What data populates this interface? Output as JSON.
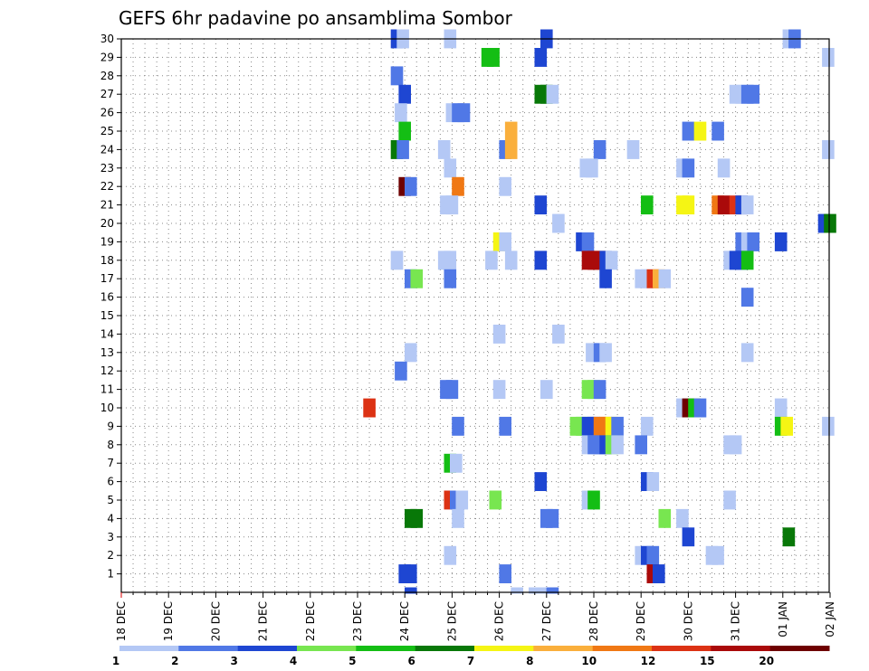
{
  "chart_data": {
    "type": "heatmap",
    "title": "GEFS 6hr padavine po ansamblima Sombor",
    "xlabel": "",
    "ylabel": "",
    "x_ticks": [
      "18 DEC",
      "19 DEC",
      "20 DEC",
      "21 DEC",
      "22 DEC",
      "23 DEC",
      "24 DEC",
      "25 DEC",
      "26 DEC",
      "27 DEC",
      "28 DEC",
      "29 DEC",
      "30 DEC",
      "31 DEC",
      "01 JAN",
      "02 JAN"
    ],
    "y_ticks": [
      "1",
      "2",
      "3",
      "4",
      "5",
      "6",
      "7",
      "8",
      "9",
      "10",
      "11",
      "12",
      "13",
      "14",
      "15",
      "16",
      "17",
      "18",
      "19",
      "20",
      "21",
      "22",
      "23",
      "24",
      "25",
      "26",
      "27",
      "28",
      "29",
      "30"
    ],
    "grid": true,
    "legend_position": "bottom",
    "legend_levels": [
      "1",
      "2",
      "3",
      "4",
      "5",
      "6",
      "7",
      "8",
      "10",
      "12",
      "15",
      "20"
    ],
    "legend_colors": [
      "#b4c8f5",
      "#5078e6",
      "#1e46d2",
      "#78e650",
      "#14be14",
      "#087808",
      "#f5f514",
      "#faaf3c",
      "#f07814",
      "#dc3214",
      "#aa0a0a",
      "#6e0000"
    ],
    "ensemble_range": [
      1,
      30
    ],
    "time_step_hours": 6,
    "cells": [
      {
        "m": 30,
        "d": "24 DEC",
        "h": -4,
        "v": 3
      },
      {
        "m": 30,
        "d": "24 DEC",
        "h": -1,
        "v": 1
      },
      {
        "m": 30,
        "d": "25 DEC",
        "h": -1,
        "v": 1
      },
      {
        "m": 30,
        "d": "27 DEC",
        "h": 0,
        "v": 3
      },
      {
        "m": 30,
        "d": "01 JAN",
        "h": 3,
        "v": 1
      },
      {
        "m": 30,
        "d": "01 JAN",
        "h": 6,
        "v": 2
      },
      {
        "m": 29,
        "d": "26 DEC",
        "h": -6,
        "v": 5
      },
      {
        "m": 29,
        "d": "26 DEC",
        "h": -3,
        "v": 5
      },
      {
        "m": 29,
        "d": "27 DEC",
        "h": -3,
        "v": 3
      },
      {
        "m": 29,
        "d": "02 JAN",
        "h": -1,
        "v": 1
      },
      {
        "m": 28,
        "d": "24 DEC",
        "h": -4,
        "v": 2
      },
      {
        "m": 27,
        "d": "24 DEC",
        "h": 0,
        "v": 3
      },
      {
        "m": 27,
        "d": "27 DEC",
        "h": -3,
        "v": 6
      },
      {
        "m": 27,
        "d": "27 DEC",
        "h": 0,
        "v": 6
      },
      {
        "m": 27,
        "d": "27 DEC",
        "h": 3,
        "v": 1
      },
      {
        "m": 27,
        "d": "31 DEC",
        "h": 0,
        "v": 1
      },
      {
        "m": 27,
        "d": "31 DEC",
        "h": 3,
        "v": 1
      },
      {
        "m": 27,
        "d": "31 DEC",
        "h": 6,
        "v": 2
      },
      {
        "m": 27,
        "d": "31 DEC",
        "h": 9,
        "v": 2
      },
      {
        "m": 26,
        "d": "24 DEC",
        "h": -2,
        "v": 1
      },
      {
        "m": 26,
        "d": "25 DEC",
        "h": 0,
        "v": 1
      },
      {
        "m": 26,
        "d": "25 DEC",
        "h": 3,
        "v": 2
      },
      {
        "m": 26,
        "d": "25 DEC",
        "h": 6,
        "v": 2
      },
      {
        "m": 25,
        "d": "24 DEC",
        "h": 0,
        "v": 5
      },
      {
        "m": 25,
        "d": "26 DEC",
        "h": 6,
        "v": 8
      },
      {
        "m": 25,
        "d": "30 DEC",
        "h": 0,
        "v": 2
      },
      {
        "m": 25,
        "d": "30 DEC",
        "h": 6,
        "v": 7
      },
      {
        "m": 25,
        "d": "31 DEC",
        "h": -9,
        "v": 2
      },
      {
        "m": 24,
        "d": "24 DEC",
        "h": -4,
        "v": 6
      },
      {
        "m": 24,
        "d": "24 DEC",
        "h": -1,
        "v": 2
      },
      {
        "m": 24,
        "d": "25 DEC",
        "h": -4,
        "v": 1
      },
      {
        "m": 24,
        "d": "26 DEC",
        "h": 3,
        "v": 2
      },
      {
        "m": 24,
        "d": "26 DEC",
        "h": 6,
        "v": 8
      },
      {
        "m": 24,
        "d": "28 DEC",
        "h": 3,
        "v": 2
      },
      {
        "m": 24,
        "d": "29 DEC",
        "h": -4,
        "v": 1
      },
      {
        "m": 24,
        "d": "02 JAN",
        "h": -1,
        "v": 1
      },
      {
        "m": 23,
        "d": "25 DEC",
        "h": -1,
        "v": 1
      },
      {
        "m": 23,
        "d": "28 DEC",
        "h": -4,
        "v": 1
      },
      {
        "m": 23,
        "d": "28 DEC",
        "h": -1,
        "v": 1
      },
      {
        "m": 23,
        "d": "30 DEC",
        "h": -3,
        "v": 1
      },
      {
        "m": 23,
        "d": "30 DEC",
        "h": 0,
        "v": 2
      },
      {
        "m": 23,
        "d": "31 DEC",
        "h": -6,
        "v": 1
      },
      {
        "m": 22,
        "d": "24 DEC",
        "h": 0,
        "v": 20
      },
      {
        "m": 22,
        "d": "24 DEC",
        "h": 3,
        "v": 2
      },
      {
        "m": 22,
        "d": "25 DEC",
        "h": 3,
        "v": 10
      },
      {
        "m": 22,
        "d": "26 DEC",
        "h": 3,
        "v": 1
      },
      {
        "m": 21,
        "d": "25 DEC",
        "h": -3,
        "v": 1
      },
      {
        "m": 21,
        "d": "25 DEC",
        "h": 0,
        "v": 1
      },
      {
        "m": 21,
        "d": "27 DEC",
        "h": -3,
        "v": 3
      },
      {
        "m": 21,
        "d": "29 DEC",
        "h": 3,
        "v": 5
      },
      {
        "m": 21,
        "d": "30 DEC",
        "h": -3,
        "v": 7
      },
      {
        "m": 21,
        "d": "30 DEC",
        "h": 0,
        "v": 7
      },
      {
        "m": 21,
        "d": "31 DEC",
        "h": -9,
        "v": 10
      },
      {
        "m": 21,
        "d": "31 DEC",
        "h": -6,
        "v": 15
      },
      {
        "m": 21,
        "d": "31 DEC",
        "h": 0,
        "v": 12
      },
      {
        "m": 21,
        "d": "31 DEC",
        "h": 3,
        "v": 3
      },
      {
        "m": 21,
        "d": "31 DEC",
        "h": 6,
        "v": 1
      },
      {
        "m": 20,
        "d": "27 DEC",
        "h": 6,
        "v": 1
      },
      {
        "m": 20,
        "d": "02 JAN",
        "h": -3,
        "v": 3
      },
      {
        "m": 20,
        "d": "02 JAN",
        "h": 0,
        "v": 6
      },
      {
        "m": 19,
        "d": "26 DEC",
        "h": 0,
        "v": 7
      },
      {
        "m": 19,
        "d": "26 DEC",
        "h": 3,
        "v": 1
      },
      {
        "m": 19,
        "d": "28 DEC",
        "h": -6,
        "v": 3
      },
      {
        "m": 19,
        "d": "28 DEC",
        "h": -3,
        "v": 2
      },
      {
        "m": 19,
        "d": "31 DEC",
        "h": 3,
        "v": 2
      },
      {
        "m": 19,
        "d": "31 DEC",
        "h": 6,
        "v": 1
      },
      {
        "m": 19,
        "d": "31 DEC",
        "h": 9,
        "v": 2
      },
      {
        "m": 19,
        "d": "01 JAN",
        "h": -1,
        "v": 3
      },
      {
        "m": 18,
        "d": "24 DEC",
        "h": -4,
        "v": 1
      },
      {
        "m": 18,
        "d": "25 DEC",
        "h": -4,
        "v": 1
      },
      {
        "m": 18,
        "d": "25 DEC",
        "h": -1,
        "v": 1
      },
      {
        "m": 18,
        "d": "26 DEC",
        "h": -4,
        "v": 1
      },
      {
        "m": 18,
        "d": "26 DEC",
        "h": 6,
        "v": 1
      },
      {
        "m": 18,
        "d": "27 DEC",
        "h": -3,
        "v": 3
      },
      {
        "m": 18,
        "d": "28 DEC",
        "h": -3,
        "v": 15
      },
      {
        "m": 18,
        "d": "28 DEC",
        "h": 0,
        "v": 15
      },
      {
        "m": 18,
        "d": "28 DEC",
        "h": 3,
        "v": 15
      },
      {
        "m": 18,
        "d": "28 DEC",
        "h": 6,
        "v": 3
      },
      {
        "m": 18,
        "d": "28 DEC",
        "h": 9,
        "v": 1
      },
      {
        "m": 18,
        "d": "31 DEC",
        "h": -3,
        "v": 1
      },
      {
        "m": 18,
        "d": "31 DEC",
        "h": 0,
        "v": 3
      },
      {
        "m": 18,
        "d": "31 DEC",
        "h": 3,
        "v": 3
      },
      {
        "m": 18,
        "d": "31 DEC",
        "h": 6,
        "v": 5
      },
      {
        "m": 17,
        "d": "24 DEC",
        "h": 3,
        "v": 2
      },
      {
        "m": 17,
        "d": "24 DEC",
        "h": 6,
        "v": 4
      },
      {
        "m": 17,
        "d": "25 DEC",
        "h": -1,
        "v": 2
      },
      {
        "m": 17,
        "d": "28 DEC",
        "h": 6,
        "v": 3
      },
      {
        "m": 17,
        "d": "29 DEC",
        "h": 0,
        "v": 1
      },
      {
        "m": 17,
        "d": "29 DEC",
        "h": 3,
        "v": 1
      },
      {
        "m": 17,
        "d": "29 DEC",
        "h": 6,
        "v": 12
      },
      {
        "m": 17,
        "d": "29 DEC",
        "h": 9,
        "v": 8
      },
      {
        "m": 17,
        "d": "29 DEC",
        "h": 12,
        "v": 1
      },
      {
        "m": 16,
        "d": "31 DEC",
        "h": 6,
        "v": 2
      },
      {
        "m": 14,
        "d": "26 DEC",
        "h": 0,
        "v": 1
      },
      {
        "m": 14,
        "d": "27 DEC",
        "h": 6,
        "v": 1
      },
      {
        "m": 13,
        "d": "24 DEC",
        "h": 3,
        "v": 1
      },
      {
        "m": 13,
        "d": "28 DEC",
        "h": -1,
        "v": 1
      },
      {
        "m": 13,
        "d": "28 DEC",
        "h": 3,
        "v": 2
      },
      {
        "m": 13,
        "d": "28 DEC",
        "h": 6,
        "v": 1
      },
      {
        "m": 13,
        "d": "31 DEC",
        "h": 6,
        "v": 1
      },
      {
        "m": 12,
        "d": "24 DEC",
        "h": -2,
        "v": 2
      },
      {
        "m": 11,
        "d": "25 DEC",
        "h": -3,
        "v": 2
      },
      {
        "m": 11,
        "d": "25 DEC",
        "h": 0,
        "v": 2
      },
      {
        "m": 11,
        "d": "26 DEC",
        "h": 0,
        "v": 1
      },
      {
        "m": 11,
        "d": "27 DEC",
        "h": 0,
        "v": 1
      },
      {
        "m": 11,
        "d": "28 DEC",
        "h": -3,
        "v": 4
      },
      {
        "m": 11,
        "d": "28 DEC",
        "h": 0,
        "v": 4
      },
      {
        "m": 11,
        "d": "28 DEC",
        "h": 3,
        "v": 2
      },
      {
        "m": 10,
        "d": "23 DEC",
        "h": 6,
        "v": 12
      },
      {
        "m": 10,
        "d": "30 DEC",
        "h": -3,
        "v": 1
      },
      {
        "m": 10,
        "d": "30 DEC",
        "h": 0,
        "v": 20
      },
      {
        "m": 10,
        "d": "30 DEC",
        "h": 3,
        "v": 5
      },
      {
        "m": 10,
        "d": "30 DEC",
        "h": 6,
        "v": 2
      },
      {
        "m": 10,
        "d": "01 JAN",
        "h": -1,
        "v": 1
      },
      {
        "m": 9,
        "d": "25 DEC",
        "h": 3,
        "v": 2
      },
      {
        "m": 9,
        "d": "26 DEC",
        "h": 3,
        "v": 2
      },
      {
        "m": 9,
        "d": "28 DEC",
        "h": -9,
        "v": 4
      },
      {
        "m": 9,
        "d": "28 DEC",
        "h": -6,
        "v": 4
      },
      {
        "m": 9,
        "d": "28 DEC",
        "h": -3,
        "v": 3
      },
      {
        "m": 9,
        "d": "28 DEC",
        "h": 0,
        "v": 3
      },
      {
        "m": 9,
        "d": "28 DEC",
        "h": 3,
        "v": 10
      },
      {
        "m": 9,
        "d": "28 DEC",
        "h": 6,
        "v": 10
      },
      {
        "m": 9,
        "d": "28 DEC",
        "h": 9,
        "v": 7
      },
      {
        "m": 9,
        "d": "28 DEC",
        "h": 12,
        "v": 2
      },
      {
        "m": 9,
        "d": "29 DEC",
        "h": 3,
        "v": 1
      },
      {
        "m": 9,
        "d": "01 JAN",
        "h": -1,
        "v": 5
      },
      {
        "m": 9,
        "d": "01 JAN",
        "h": 2,
        "v": 7
      },
      {
        "m": 9,
        "d": "02 JAN",
        "h": -1,
        "v": 1
      },
      {
        "m": 8,
        "d": "28 DEC",
        "h": -3,
        "v": 1
      },
      {
        "m": 8,
        "d": "28 DEC",
        "h": 0,
        "v": 2
      },
      {
        "m": 8,
        "d": "28 DEC",
        "h": 3,
        "v": 2
      },
      {
        "m": 8,
        "d": "28 DEC",
        "h": 6,
        "v": 3
      },
      {
        "m": 8,
        "d": "28 DEC",
        "h": 9,
        "v": 4
      },
      {
        "m": 8,
        "d": "28 DEC",
        "h": 12,
        "v": 1
      },
      {
        "m": 8,
        "d": "29 DEC",
        "h": 0,
        "v": 2
      },
      {
        "m": 8,
        "d": "31 DEC",
        "h": -3,
        "v": 1
      },
      {
        "m": 8,
        "d": "31 DEC",
        "h": 0,
        "v": 1
      },
      {
        "m": 7,
        "d": "25 DEC",
        "h": -1,
        "v": 5
      },
      {
        "m": 7,
        "d": "25 DEC",
        "h": 2,
        "v": 1
      },
      {
        "m": 6,
        "d": "27 DEC",
        "h": -3,
        "v": 3
      },
      {
        "m": 6,
        "d": "29 DEC",
        "h": 3,
        "v": 3
      },
      {
        "m": 6,
        "d": "29 DEC",
        "h": 6,
        "v": 1
      },
      {
        "m": 5,
        "d": "25 DEC",
        "h": -1,
        "v": 12
      },
      {
        "m": 5,
        "d": "25 DEC",
        "h": 2,
        "v": 2
      },
      {
        "m": 5,
        "d": "25 DEC",
        "h": 5,
        "v": 1
      },
      {
        "m": 5,
        "d": "26 DEC",
        "h": -2,
        "v": 4
      },
      {
        "m": 5,
        "d": "28 DEC",
        "h": -3,
        "v": 1
      },
      {
        "m": 5,
        "d": "28 DEC",
        "h": 0,
        "v": 5
      },
      {
        "m": 5,
        "d": "31 DEC",
        "h": -3,
        "v": 1
      },
      {
        "m": 4,
        "d": "24 DEC",
        "h": 3,
        "v": 6
      },
      {
        "m": 4,
        "d": "24 DEC",
        "h": 6,
        "v": 6
      },
      {
        "m": 4,
        "d": "25 DEC",
        "h": 3,
        "v": 1
      },
      {
        "m": 4,
        "d": "27 DEC",
        "h": 0,
        "v": 2
      },
      {
        "m": 4,
        "d": "27 DEC",
        "h": 3,
        "v": 2
      },
      {
        "m": 4,
        "d": "29 DEC",
        "h": 12,
        "v": 4
      },
      {
        "m": 4,
        "d": "30 DEC",
        "h": -3,
        "v": 1
      },
      {
        "m": 3,
        "d": "30 DEC",
        "h": 0,
        "v": 3
      },
      {
        "m": 3,
        "d": "01 JAN",
        "h": 3,
        "v": 6
      },
      {
        "m": 2,
        "d": "25 DEC",
        "h": -1,
        "v": 1
      },
      {
        "m": 2,
        "d": "29 DEC",
        "h": 0,
        "v": 1
      },
      {
        "m": 2,
        "d": "29 DEC",
        "h": 3,
        "v": 3
      },
      {
        "m": 2,
        "d": "29 DEC",
        "h": 6,
        "v": 2
      },
      {
        "m": 2,
        "d": "30 DEC",
        "h": 12,
        "v": 1
      },
      {
        "m": 2,
        "d": "30 DEC",
        "h": 15,
        "v": 1
      },
      {
        "m": 1,
        "d": "24 DEC",
        "h": 0,
        "v": 3
      },
      {
        "m": 1,
        "d": "24 DEC",
        "h": 3,
        "v": 3
      },
      {
        "m": 1,
        "d": "26 DEC",
        "h": 3,
        "v": 2
      },
      {
        "m": 1,
        "d": "29 DEC",
        "h": 6,
        "v": 15
      },
      {
        "m": 1,
        "d": "29 DEC",
        "h": 9,
        "v": 3
      },
      {
        "m": 0,
        "d": "24 DEC",
        "h": 3,
        "v": 3
      },
      {
        "m": 0,
        "d": "26 DEC",
        "h": 9,
        "v": 1
      },
      {
        "m": 0,
        "d": "27 DEC",
        "h": -6,
        "v": 1
      },
      {
        "m": 0,
        "d": "27 DEC",
        "h": -3,
        "v": 1
      },
      {
        "m": 0,
        "d": "27 DEC",
        "h": 0,
        "v": 1
      },
      {
        "m": 0,
        "d": "27 DEC",
        "h": 3,
        "v": 2
      }
    ]
  }
}
